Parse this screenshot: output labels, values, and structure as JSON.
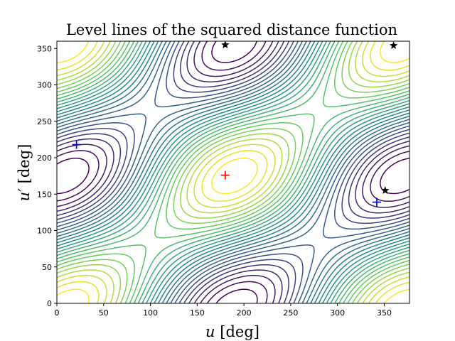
{
  "chart_data": {
    "type": "contour",
    "title": "Level lines of the squared distance function",
    "xlabel": "$u$ [deg]",
    "ylabel": "$u'$ [deg]",
    "xlabel_parts": {
      "var": "u",
      "unit": " [deg]"
    },
    "ylabel_parts": {
      "var": "u′",
      "unit": " [deg]"
    },
    "xlim": [
      0,
      377
    ],
    "ylim": [
      0,
      360
    ],
    "xticks": [
      0,
      50,
      100,
      150,
      200,
      250,
      300,
      350
    ],
    "yticks": [
      0,
      50,
      100,
      150,
      200,
      250,
      300,
      350
    ],
    "grid": false,
    "colormap": "viridis",
    "function_center": [
      190,
      175
    ],
    "num_levels": 26,
    "markers": [
      {
        "type": "plus",
        "color": "#ff0000",
        "u": 180,
        "u_prime": 176
      },
      {
        "type": "plus",
        "color": "#0000ff",
        "u": 21,
        "u_prime": 218
      },
      {
        "type": "plus",
        "color": "#0000ff",
        "u": 342,
        "u_prime": 139
      },
      {
        "type": "star",
        "color": "#000000",
        "u": 180,
        "u_prime": 355
      },
      {
        "type": "star",
        "color": "#000000",
        "u": 360,
        "u_prime": 354
      },
      {
        "type": "star",
        "color": "#000000",
        "u": 351,
        "u_prime": 155
      }
    ]
  }
}
